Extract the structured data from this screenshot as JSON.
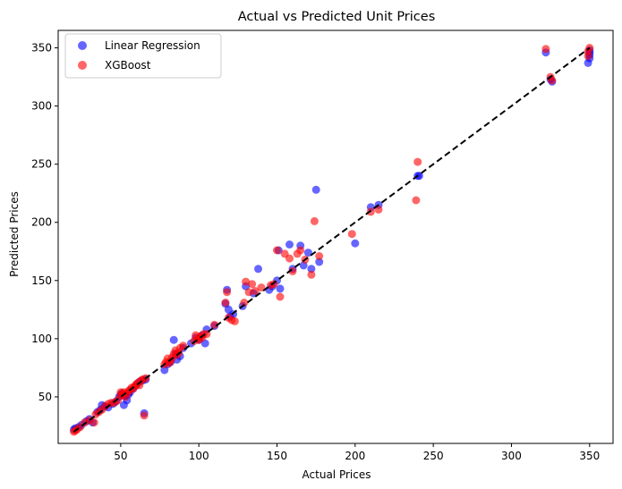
{
  "chart_data": {
    "type": "scatter",
    "title": "Actual vs Predicted Unit Prices",
    "xlabel": "Actual Prices",
    "ylabel": "Predicted Prices",
    "xlim": [
      10,
      365
    ],
    "ylim": [
      10,
      365
    ],
    "xticks": [
      50,
      100,
      150,
      200,
      250,
      300,
      350
    ],
    "yticks": [
      50,
      100,
      150,
      200,
      250,
      300,
      350
    ],
    "grid": false,
    "legend_position": "top-left",
    "reference_line": {
      "style": "dashed",
      "color": "#000000",
      "from": [
        20,
        20
      ],
      "to": [
        350,
        350
      ]
    },
    "series": [
      {
        "name": "Linear Regression",
        "color": "#0000ff",
        "points": [
          [
            20,
            22
          ],
          [
            21,
            23
          ],
          [
            23,
            24
          ],
          [
            25,
            26
          ],
          [
            28,
            29
          ],
          [
            30,
            31
          ],
          [
            32,
            28
          ],
          [
            35,
            37
          ],
          [
            37,
            39
          ],
          [
            38,
            43
          ],
          [
            40,
            42
          ],
          [
            42,
            41
          ],
          [
            45,
            44
          ],
          [
            47,
            46
          ],
          [
            49,
            50
          ],
          [
            50,
            52
          ],
          [
            51,
            53
          ],
          [
            52,
            43
          ],
          [
            53,
            51
          ],
          [
            54,
            47
          ],
          [
            55,
            52
          ],
          [
            56,
            54
          ],
          [
            58,
            57
          ],
          [
            60,
            60
          ],
          [
            62,
            63
          ],
          [
            64,
            64
          ],
          [
            65,
            36
          ],
          [
            66,
            65
          ],
          [
            78,
            73
          ],
          [
            80,
            78
          ],
          [
            82,
            80
          ],
          [
            84,
            99
          ],
          [
            85,
            87
          ],
          [
            86,
            82
          ],
          [
            88,
            85
          ],
          [
            90,
            92
          ],
          [
            95,
            96
          ],
          [
            98,
            101
          ],
          [
            100,
            99
          ],
          [
            102,
            103
          ],
          [
            104,
            96
          ],
          [
            105,
            108
          ],
          [
            110,
            111
          ],
          [
            117,
            130
          ],
          [
            118,
            142
          ],
          [
            119,
            125
          ],
          [
            120,
            119
          ],
          [
            122,
            121
          ],
          [
            128,
            128
          ],
          [
            130,
            145
          ],
          [
            135,
            139
          ],
          [
            138,
            160
          ],
          [
            145,
            142
          ],
          [
            147,
            145
          ],
          [
            150,
            150
          ],
          [
            151,
            176
          ],
          [
            152,
            143
          ],
          [
            158,
            181
          ],
          [
            160,
            160
          ],
          [
            165,
            180
          ],
          [
            167,
            163
          ],
          [
            170,
            174
          ],
          [
            172,
            160
          ],
          [
            175,
            228
          ],
          [
            177,
            166
          ],
          [
            200,
            182
          ],
          [
            210,
            213
          ],
          [
            215,
            215
          ],
          [
            240,
            240
          ],
          [
            241,
            240
          ],
          [
            322,
            346
          ],
          [
            325,
            323
          ],
          [
            326,
            321
          ],
          [
            349,
            337
          ],
          [
            350,
            341
          ],
          [
            350,
            344
          ],
          [
            350,
            346
          ],
          [
            350,
            348
          ]
        ]
      },
      {
        "name": "XGBoost",
        "color": "#ff0000",
        "points": [
          [
            20,
            20
          ],
          [
            21,
            21
          ],
          [
            22,
            22
          ],
          [
            24,
            24
          ],
          [
            27,
            28
          ],
          [
            30,
            30
          ],
          [
            33,
            28
          ],
          [
            34,
            35
          ],
          [
            36,
            37
          ],
          [
            38,
            39
          ],
          [
            40,
            42
          ],
          [
            42,
            44
          ],
          [
            44,
            45
          ],
          [
            46,
            45
          ],
          [
            48,
            47
          ],
          [
            50,
            51
          ],
          [
            50,
            54
          ],
          [
            51,
            52
          ],
          [
            52,
            54
          ],
          [
            53,
            50
          ],
          [
            54,
            53
          ],
          [
            55,
            55
          ],
          [
            56,
            56
          ],
          [
            57,
            58
          ],
          [
            58,
            57
          ],
          [
            59,
            59
          ],
          [
            60,
            61
          ],
          [
            61,
            62
          ],
          [
            62,
            60
          ],
          [
            63,
            64
          ],
          [
            64,
            65
          ],
          [
            65,
            34
          ],
          [
            66,
            66
          ],
          [
            78,
            78
          ],
          [
            79,
            80
          ],
          [
            80,
            83
          ],
          [
            81,
            79
          ],
          [
            82,
            81
          ],
          [
            83,
            84
          ],
          [
            84,
            87
          ],
          [
            85,
            90
          ],
          [
            86,
            86
          ],
          [
            87,
            88
          ],
          [
            88,
            92
          ],
          [
            90,
            94
          ],
          [
            97,
            98
          ],
          [
            98,
            103
          ],
          [
            99,
            100
          ],
          [
            100,
            99
          ],
          [
            101,
            102
          ],
          [
            102,
            101
          ],
          [
            103,
            104
          ],
          [
            105,
            104
          ],
          [
            110,
            112
          ],
          [
            117,
            131
          ],
          [
            118,
            140
          ],
          [
            119,
            118
          ],
          [
            121,
            116
          ],
          [
            123,
            115
          ],
          [
            129,
            131
          ],
          [
            130,
            149
          ],
          [
            132,
            140
          ],
          [
            134,
            147
          ],
          [
            136,
            141
          ],
          [
            140,
            144
          ],
          [
            146,
            146
          ],
          [
            148,
            147
          ],
          [
            150,
            176
          ],
          [
            152,
            136
          ],
          [
            155,
            173
          ],
          [
            158,
            169
          ],
          [
            160,
            158
          ],
          [
            163,
            173
          ],
          [
            165,
            176
          ],
          [
            168,
            168
          ],
          [
            172,
            155
          ],
          [
            174,
            201
          ],
          [
            177,
            171
          ],
          [
            198,
            190
          ],
          [
            210,
            209
          ],
          [
            215,
            211
          ],
          [
            239,
            219
          ],
          [
            240,
            252
          ],
          [
            322,
            349
          ],
          [
            325,
            325
          ],
          [
            326,
            322
          ],
          [
            349,
            343
          ],
          [
            350,
            350
          ],
          [
            349,
            347
          ]
        ]
      }
    ]
  }
}
